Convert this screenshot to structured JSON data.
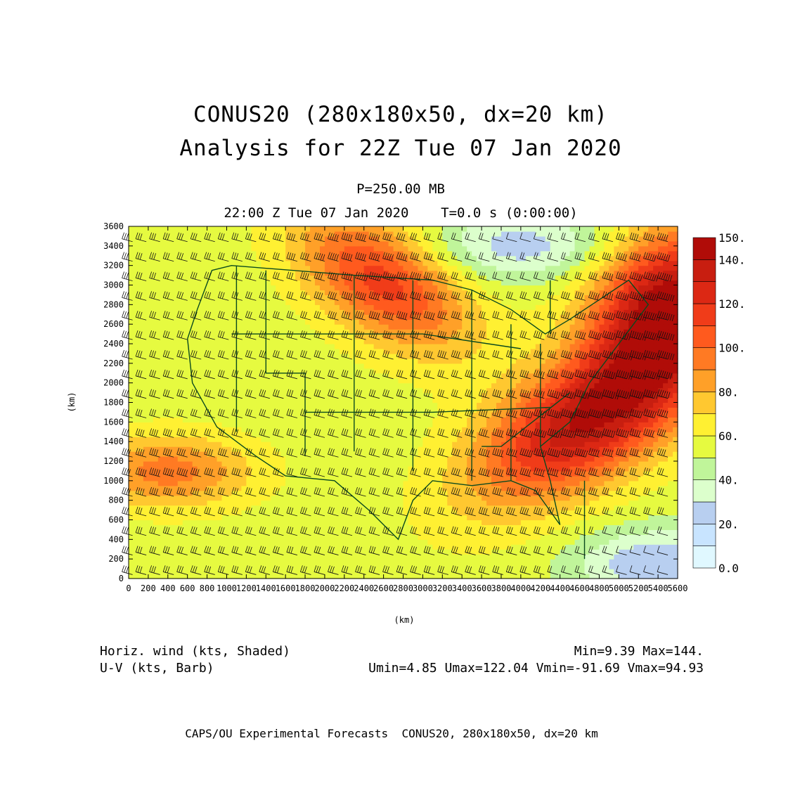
{
  "header": {
    "title_line1": "CONUS20 (280x180x50, dx=20 km)",
    "title_line2": "Analysis for 22Z Tue 07 Jan 2020",
    "level": "P=250.00 MB",
    "valid_time": "22:00 Z Tue 07 Jan 2020    T=0.0 s (0:00:00)"
  },
  "axes": {
    "x_label": "(km)",
    "y_label": "(km)",
    "x_ticks": [
      "0",
      "200",
      "400",
      "600",
      "800",
      "1000",
      "1200",
      "1400",
      "1600",
      "1800",
      "2000",
      "2200",
      "2400",
      "2600",
      "2800",
      "3000",
      "3200",
      "3400",
      "3600",
      "3800",
      "4000",
      "4200",
      "4400",
      "4600",
      "4800",
      "5000",
      "5200",
      "5400",
      "5600"
    ],
    "y_ticks": [
      "0",
      "200",
      "400",
      "600",
      "800",
      "1000",
      "1200",
      "1400",
      "1600",
      "1800",
      "2000",
      "2200",
      "2400",
      "2600",
      "2800",
      "3000",
      "3200",
      "3400",
      "3600"
    ],
    "x_range_km": [
      0,
      5600
    ],
    "y_range_km": [
      0,
      3600
    ]
  },
  "colorbar": {
    "labels": [
      "150.",
      "140.",
      "120.",
      "100.",
      "80.",
      "60.",
      "40.",
      "20.",
      "0.0"
    ],
    "levels": [
      0,
      10,
      20,
      30,
      40,
      50,
      60,
      70,
      80,
      90,
      100,
      110,
      120,
      130,
      140,
      150
    ],
    "colors": [
      "#e0f8ff",
      "#c8e4ff",
      "#b8cff0",
      "#dcffcc",
      "#c0f59a",
      "#e6fa40",
      "#fff032",
      "#ffc830",
      "#ffa028",
      "#ff7a23",
      "#ff5a1e",
      "#f03c19",
      "#dc2814",
      "#c81e10",
      "#b00c08"
    ]
  },
  "stats": {
    "field1": "Horiz. wind (kts, Shaded)",
    "field2": "U-V (kts, Barb)",
    "minmax": "Min=9.39 Max=144.",
    "uv_range": "Umin=4.85 Umax=122.04 Vmin=-91.69 Vmax=94.93"
  },
  "footer": {
    "credit": "CAPS/OU Experimental Forecasts  CONUS20, 280x180x50, dx=20 km"
  },
  "wind_field": {
    "background_kts": 55,
    "features": [
      {
        "name": "eastern jet core",
        "center_km": [
          4700,
          1650
        ],
        "speed_kts": 140
      },
      {
        "name": "atlantic jet exit",
        "center_km": [
          5500,
          2800
        ],
        "speed_kts": 144
      },
      {
        "name": "northern plains jet",
        "center_km": [
          2600,
          3050
        ],
        "speed_kts": 115
      },
      {
        "name": "pacific jet",
        "center_km": [
          400,
          1100
        ],
        "speed_kts": 95
      },
      {
        "name": "canada minimum",
        "center_km": [
          4000,
          3400
        ],
        "speed_kts": 25
      },
      {
        "name": "caribbean minimum",
        "center_km": [
          5400,
          150
        ],
        "speed_kts": 20
      }
    ]
  }
}
